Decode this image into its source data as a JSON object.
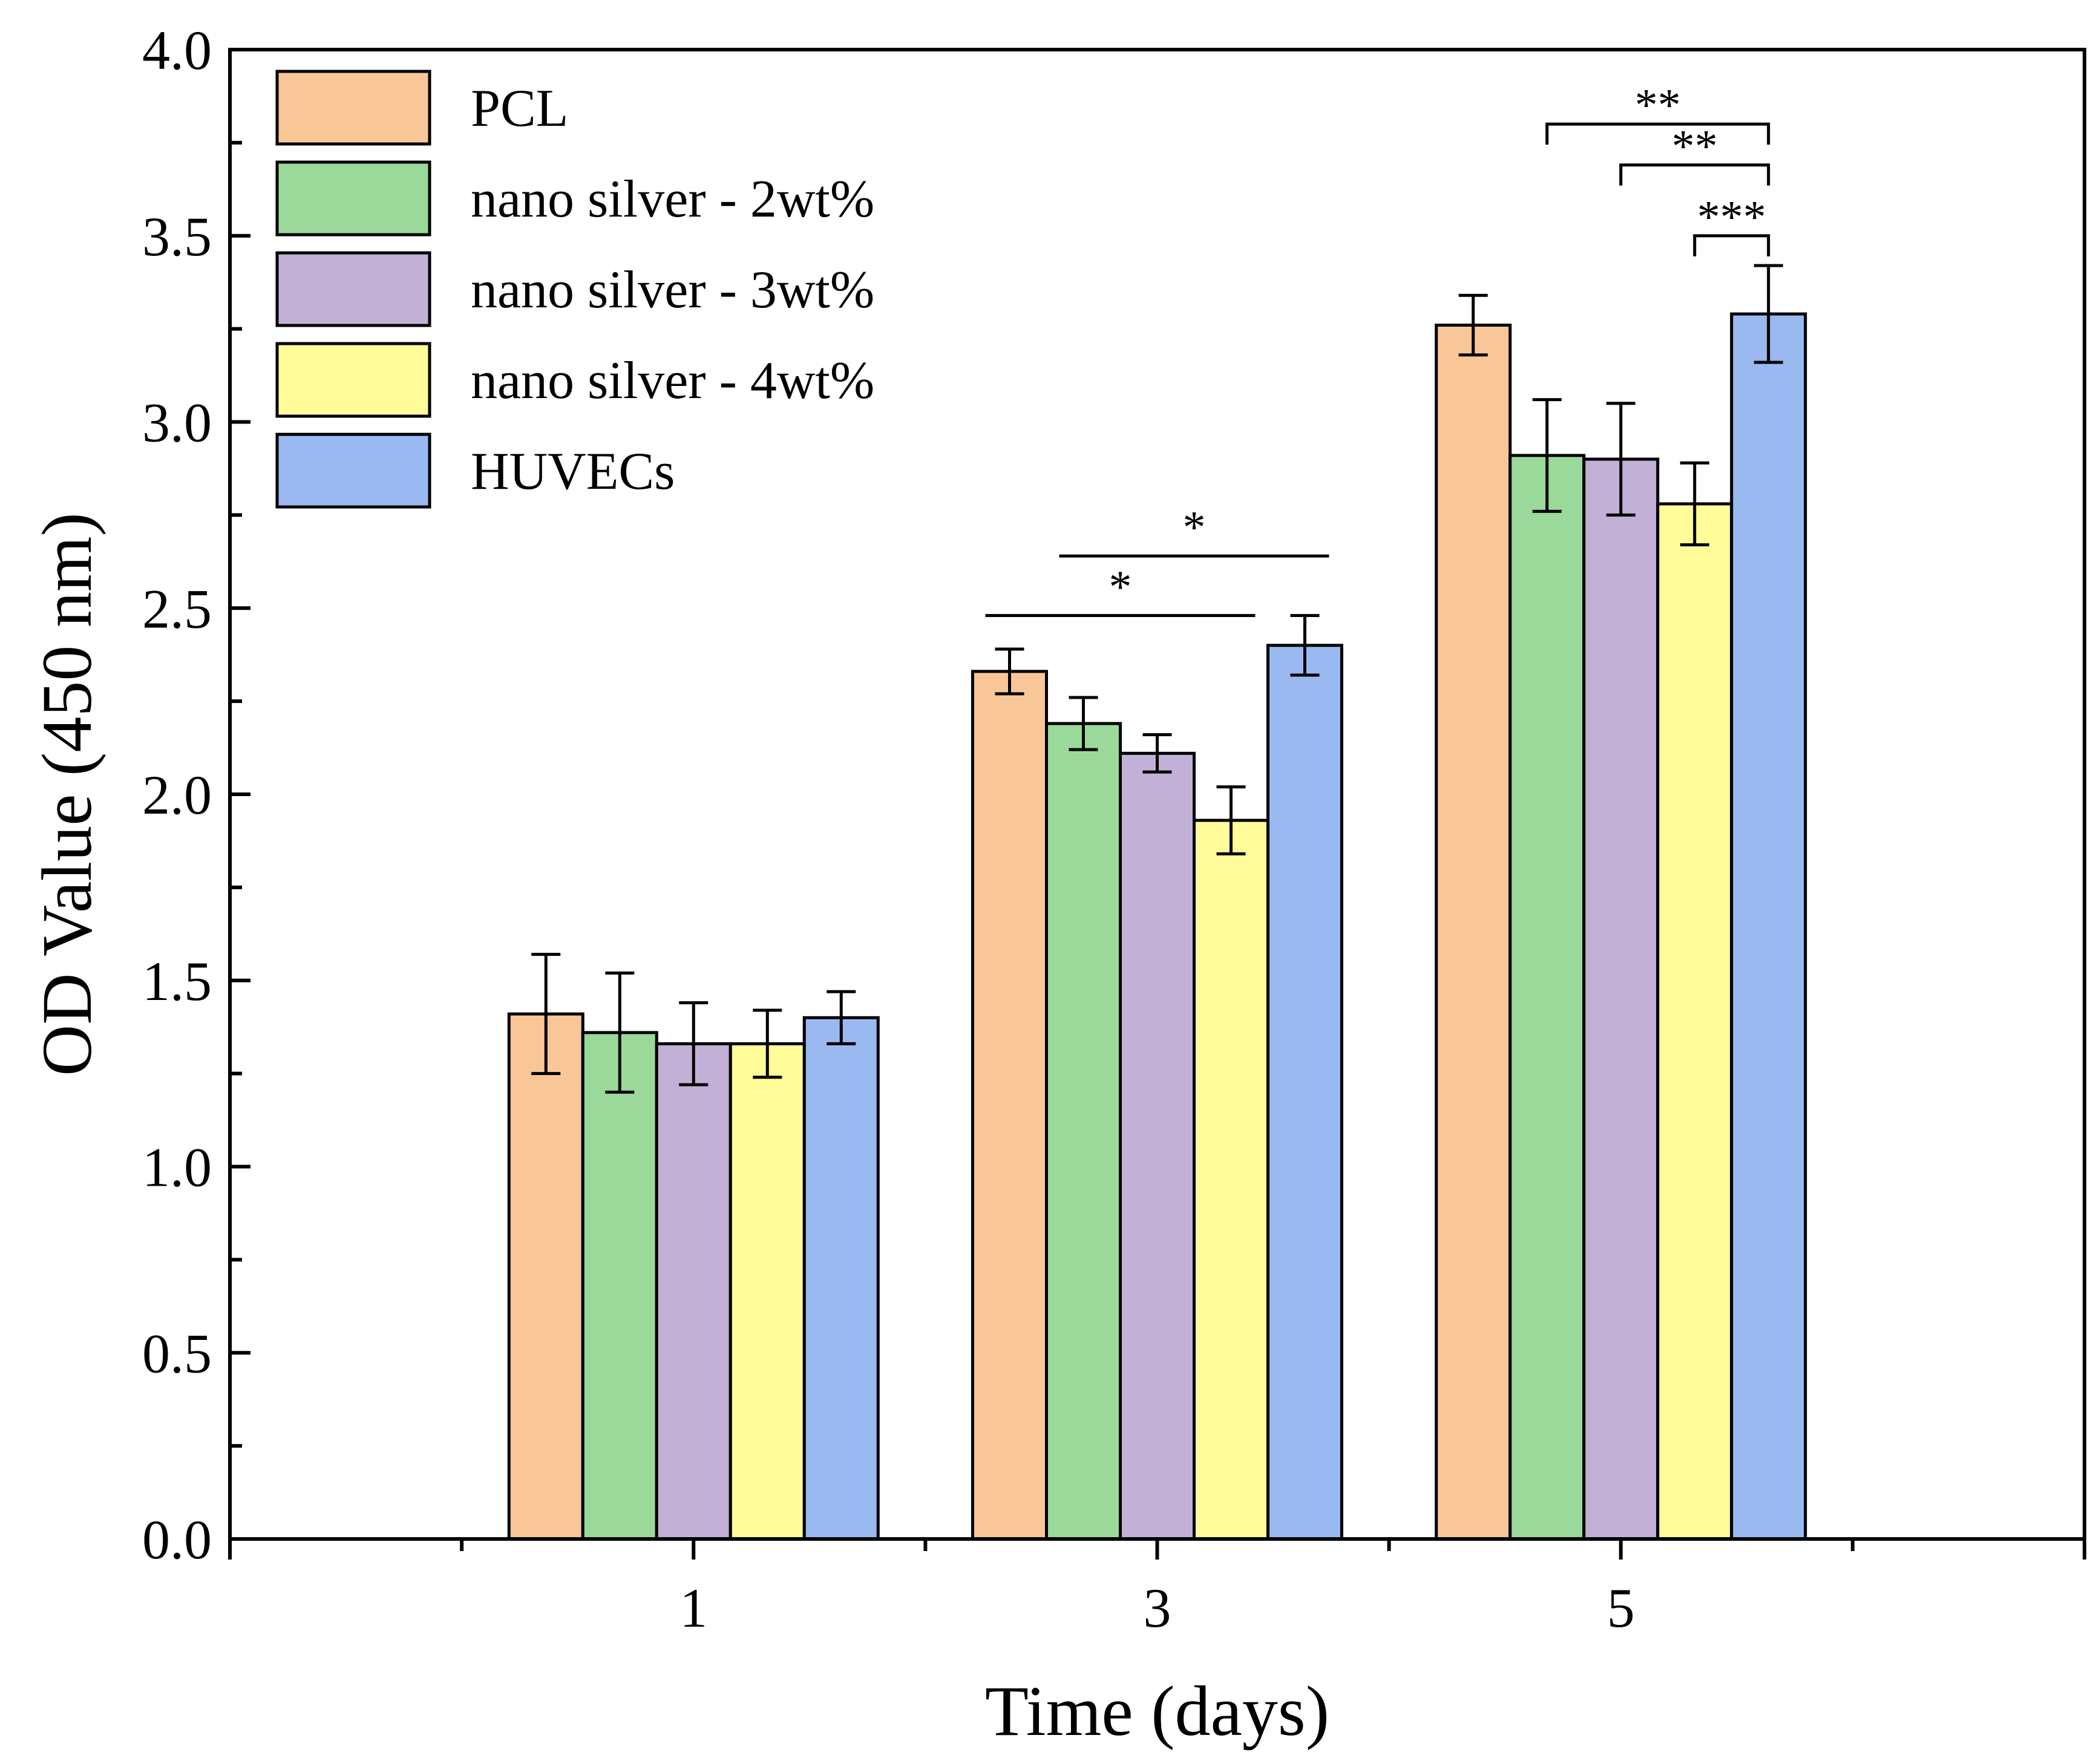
{
  "chart_data": {
    "type": "bar",
    "title": "",
    "xlabel": "Time (days)",
    "ylabel": "OD Value (450 nm)",
    "categories": [
      "1",
      "3",
      "5"
    ],
    "ylim": [
      0.0,
      4.0
    ],
    "yticks": [
      "0.0",
      "0.5",
      "1.0",
      "1.5",
      "2.0",
      "2.5",
      "3.0",
      "3.5",
      "4.0"
    ],
    "legend_position": "top-left",
    "series": [
      {
        "name": "PCL",
        "color": "#F9C797",
        "values": [
          1.41,
          2.33,
          3.26
        ],
        "errors": [
          0.16,
          0.06,
          0.08
        ]
      },
      {
        "name": "nano silver - 2wt%",
        "color": "#9BD99B",
        "values": [
          1.36,
          2.19,
          2.91
        ],
        "errors": [
          0.16,
          0.07,
          0.15
        ]
      },
      {
        "name": "nano silver - 3wt%",
        "color": "#C2B0D6",
        "values": [
          1.33,
          2.11,
          2.9
        ],
        "errors": [
          0.11,
          0.05,
          0.15
        ]
      },
      {
        "name": "nano silver - 4wt%",
        "color": "#FFFC99",
        "values": [
          1.33,
          1.93,
          2.78
        ],
        "errors": [
          0.09,
          0.09,
          0.11
        ]
      },
      {
        "name": "HUVECs",
        "color": "#9AB9F1",
        "values": [
          1.4,
          2.4,
          3.29
        ],
        "errors": [
          0.07,
          0.08,
          0.13
        ]
      }
    ],
    "significance": [
      {
        "category": "3",
        "from_series": 0,
        "to_series": 3,
        "label": "*",
        "type": "line",
        "y": 2.48
      },
      {
        "category": "3",
        "from_series": 1,
        "to_series": 4,
        "label": "*",
        "type": "line",
        "y": 2.64
      },
      {
        "category": "5",
        "from_series": 1,
        "to_series": 4,
        "label": "**",
        "type": "bracket",
        "y": 3.8
      },
      {
        "category": "5",
        "from_series": 2,
        "to_series": 4,
        "label": "**",
        "type": "bracket",
        "y": 3.69
      },
      {
        "category": "5",
        "from_series": 3,
        "to_series": 4,
        "label": "***",
        "type": "bracket",
        "y": 3.5
      }
    ]
  }
}
